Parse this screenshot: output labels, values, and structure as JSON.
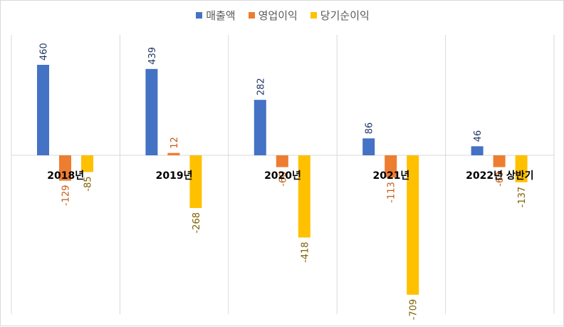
{
  "chart_data": {
    "type": "bar",
    "categories": [
      "2018년",
      "2019년",
      "2020년",
      "2021년",
      "2022년 상반기"
    ],
    "series": [
      {
        "name": "매출액",
        "values": [
          460,
          439,
          282,
          86,
          46
        ],
        "color": "#4472C4"
      },
      {
        "name": "영업이익",
        "values": [
          -129,
          12,
          -60,
          -113,
          -60
        ],
        "color": "#ED7D31"
      },
      {
        "name": "당기순이익",
        "values": [
          -85,
          -268,
          -418,
          -709,
          -137
        ],
        "color": "#FFC000"
      }
    ],
    "label_colors": [
      "#203864",
      "#C55A11",
      "#7F6000"
    ],
    "ylim": [
      -790,
      610
    ],
    "grid": "vertical-category-dividers",
    "legend": "top-center"
  }
}
